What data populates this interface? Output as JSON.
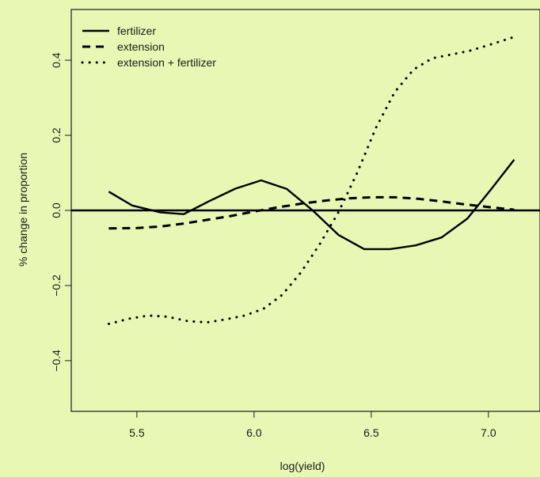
{
  "chart_data": {
    "type": "line",
    "title": "",
    "xlabel": "log(yield)",
    "ylabel": "% change in proportion",
    "xlim": [
      5.22,
      7.22
    ],
    "ylim": [
      -0.535,
      0.535
    ],
    "xticks": [
      5.5,
      6.0,
      6.5,
      7.0
    ],
    "xtick_labels": [
      "5.5",
      "6.0",
      "6.5",
      "7.0"
    ],
    "yticks": [
      -0.4,
      -0.2,
      0.0,
      0.2,
      0.4
    ],
    "ytick_labels": [
      "−0.4",
      "−0.2",
      "0.0",
      "0.2",
      "0.4"
    ],
    "hline": 0.0,
    "legend_position": "top-left",
    "background": "#e9f7b4",
    "series": [
      {
        "name": "fertilizer",
        "style": "solid",
        "x": [
          5.38,
          5.48,
          5.6,
          5.7,
          5.81,
          5.92,
          6.03,
          6.14,
          6.25,
          6.36,
          6.47,
          6.58,
          6.69,
          6.8,
          6.91,
          7.01,
          7.11
        ],
        "y": [
          0.05,
          0.013,
          -0.005,
          -0.01,
          0.025,
          0.058,
          0.08,
          0.057,
          0.0,
          -0.065,
          -0.103,
          -0.103,
          -0.093,
          -0.072,
          -0.022,
          0.055,
          0.135
        ]
      },
      {
        "name": "extension",
        "style": "dashed",
        "x": [
          5.38,
          5.5,
          5.6,
          5.7,
          5.8,
          5.9,
          6.0,
          6.1,
          6.2,
          6.3,
          6.4,
          6.5,
          6.6,
          6.7,
          6.8,
          6.9,
          7.0,
          7.11
        ],
        "y": [
          -0.048,
          -0.047,
          -0.043,
          -0.035,
          -0.025,
          -0.015,
          -0.003,
          0.008,
          0.018,
          0.026,
          0.032,
          0.035,
          0.035,
          0.031,
          0.024,
          0.016,
          0.009,
          0.002
        ]
      },
      {
        "name": "extension + fertilizer",
        "style": "dotted",
        "x": [
          5.38,
          5.47,
          5.55,
          5.63,
          5.72,
          5.8,
          5.88,
          5.96,
          6.04,
          6.12,
          6.2,
          6.28,
          6.36,
          6.44,
          6.52,
          6.6,
          6.68,
          6.76,
          6.84,
          6.92,
          7.0,
          7.11
        ],
        "y": [
          -0.302,
          -0.288,
          -0.28,
          -0.283,
          -0.295,
          -0.298,
          -0.29,
          -0.28,
          -0.262,
          -0.225,
          -0.165,
          -0.09,
          -0.005,
          0.1,
          0.22,
          0.315,
          0.375,
          0.405,
          0.415,
          0.425,
          0.44,
          0.462
        ]
      }
    ]
  }
}
